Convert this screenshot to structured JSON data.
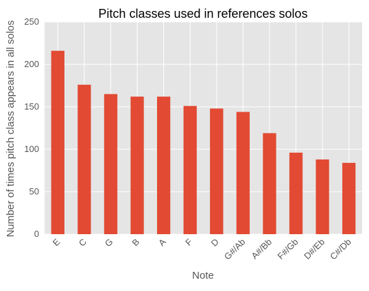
{
  "chart_data": {
    "type": "bar",
    "title": "Pitch classes used in references solos",
    "xlabel": "Note",
    "ylabel": "Number of times pitch class appears in all solos",
    "categories": [
      "E",
      "C",
      "G",
      "B",
      "A",
      "F",
      "D",
      "G#/Ab",
      "A#/Bb",
      "F#/Gb",
      "D#/Eb",
      "C#/Db"
    ],
    "values": [
      216,
      176,
      165,
      162,
      162,
      151,
      148,
      144,
      119,
      96,
      88,
      84
    ],
    "ylim": [
      0,
      250
    ],
    "yticks": [
      "0",
      "50",
      "100",
      "150",
      "200",
      "250"
    ],
    "grid": true,
    "legend": "none",
    "colors": {
      "bar": "#E24A33",
      "plot_background": "#E5E5E5",
      "grid": "#FFFFFF",
      "text": "#555555",
      "title": "#000000"
    }
  }
}
